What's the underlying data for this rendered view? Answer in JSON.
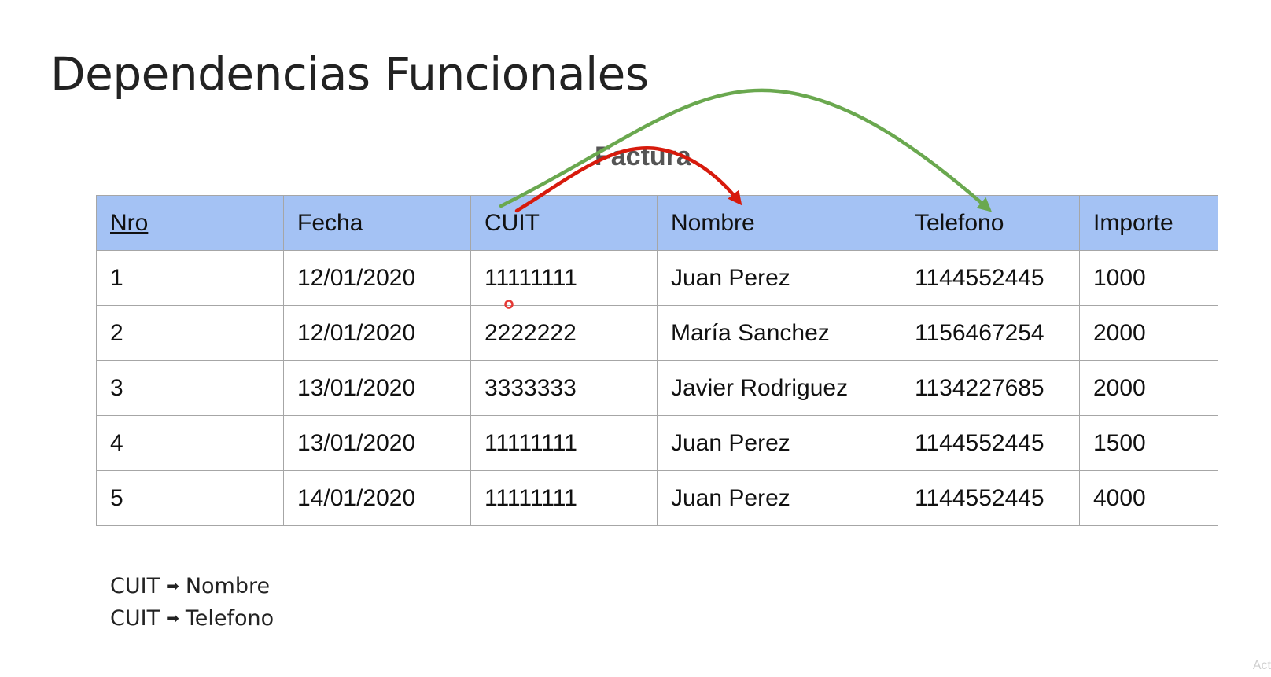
{
  "slide": {
    "title": "Dependencias Funcionales",
    "table_caption": "Factura"
  },
  "table": {
    "headers": [
      "Nro",
      "Fecha",
      "CUIT",
      "Nombre",
      "Telefono",
      "Importe"
    ],
    "rows": [
      [
        "1",
        "12/01/2020",
        "11111111",
        "Juan Perez",
        "1144552445",
        "1000"
      ],
      [
        "2",
        "12/01/2020",
        "2222222",
        "María Sanchez",
        "1156467254",
        "2000"
      ],
      [
        "3",
        "13/01/2020",
        "3333333",
        "Javier Rodriguez",
        "1134227685",
        "2000"
      ],
      [
        "4",
        "13/01/2020",
        "11111111",
        "Juan Perez",
        "1144552445",
        "1500"
      ],
      [
        "5",
        "14/01/2020",
        "11111111",
        "Juan Perez",
        "1144552445",
        "4000"
      ]
    ]
  },
  "dependencies": [
    {
      "from": "CUIT",
      "to": "Nombre"
    },
    {
      "from": "CUIT",
      "to": "Telefono"
    }
  ],
  "annotations": {
    "red_arrow": {
      "from": "CUIT",
      "to": "Nombre",
      "color": "#d71a0c"
    },
    "green_arrow": {
      "from": "CUIT",
      "to": "Telefono",
      "color": "#6aa84f"
    }
  },
  "watermark": "Act",
  "colors": {
    "header_fill": "#a4c2f4",
    "grid_line": "#a6a6a6",
    "caption": "#555555",
    "pointer_dot": "#e53935"
  }
}
